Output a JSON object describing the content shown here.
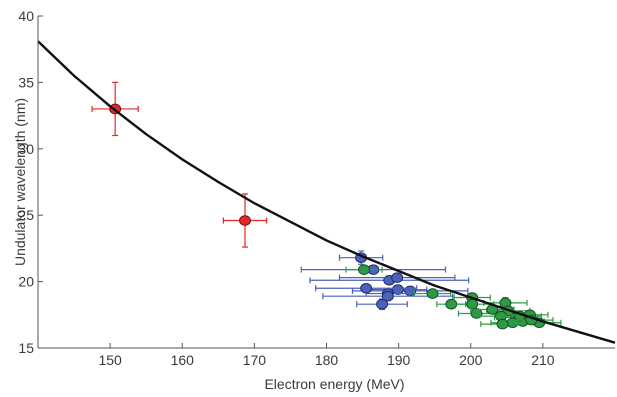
{
  "chart_data": {
    "type": "scatter",
    "title": "",
    "xlabel": "Electron energy (MeV)",
    "ylabel": "Undulator wavelength (nm)",
    "xlim": [
      140,
      220
    ],
    "ylim": [
      15,
      40
    ],
    "xticks": [
      150,
      160,
      170,
      180,
      190,
      200,
      210
    ],
    "yticks": [
      15,
      20,
      25,
      30,
      35,
      40
    ],
    "grid": false,
    "legend": "none",
    "fit_curve": {
      "description_free": true,
      "x": [
        140,
        145,
        150,
        155,
        160,
        165,
        170,
        175,
        180,
        185,
        190,
        195,
        200,
        205,
        210,
        215,
        220
      ],
      "y": [
        38.1,
        35.5,
        33.2,
        31.1,
        29.2,
        27.5,
        25.9,
        24.5,
        23.1,
        21.9,
        20.8,
        19.7,
        18.8,
        17.9,
        17.0,
        16.2,
        15.4
      ]
    },
    "series": [
      {
        "color": "#e02828",
        "edge": "#7a1010",
        "points": [
          {
            "x": 150.7,
            "y": 33.0,
            "xerr": 3.2,
            "yerr": 2.0
          },
          {
            "x": 168.7,
            "y": 24.6,
            "xerr": 3.0,
            "yerr": 2.0
          }
        ]
      },
      {
        "color": "#4a62b8",
        "edge": "#1e2c66",
        "points": [
          {
            "x": 184.8,
            "y": 21.8,
            "xerr": 3.0,
            "yerr": 0.5
          },
          {
            "x": 186.5,
            "y": 20.9,
            "xerr": 10.0,
            "yerr": 0.3
          },
          {
            "x": 188.7,
            "y": 20.1,
            "xerr": 11.0,
            "yerr": 0.3
          },
          {
            "x": 189.8,
            "y": 20.3,
            "xerr": 8.0,
            "yerr": 0.3
          },
          {
            "x": 191.6,
            "y": 19.3,
            "xerr": 8.0,
            "yerr": 0.3
          },
          {
            "x": 189.9,
            "y": 19.4,
            "xerr": 4.0,
            "yerr": 0.3
          },
          {
            "x": 188.5,
            "y": 19.1,
            "xerr": 3.0,
            "yerr": 0.3
          },
          {
            "x": 188.5,
            "y": 18.9,
            "xerr": 9.0,
            "yerr": 0.3
          },
          {
            "x": 187.7,
            "y": 18.3,
            "xerr": 3.5,
            "yerr": 0.4
          },
          {
            "x": 185.5,
            "y": 19.5,
            "xerr": 7.0,
            "yerr": 0.3
          }
        ]
      },
      {
        "color": "#2e9a46",
        "edge": "#145022",
        "points": [
          {
            "x": 185.2,
            "y": 20.9,
            "xerr": 2.5,
            "yerr": 0.3
          },
          {
            "x": 194.7,
            "y": 19.1,
            "xerr": 2.5,
            "yerr": 0.3
          },
          {
            "x": 197.3,
            "y": 18.3,
            "xerr": 2.0,
            "yerr": 0.3
          },
          {
            "x": 200.2,
            "y": 18.8,
            "xerr": 2.5,
            "yerr": 0.3
          },
          {
            "x": 200.8,
            "y": 17.6,
            "xerr": 2.5,
            "yerr": 0.3
          },
          {
            "x": 200.2,
            "y": 18.3,
            "xerr": 3.0,
            "yerr": 0.3
          },
          {
            "x": 204.8,
            "y": 18.4,
            "xerr": 3.0,
            "yerr": 0.4
          },
          {
            "x": 205.2,
            "y": 17.8,
            "xerr": 3.0,
            "yerr": 0.3
          },
          {
            "x": 204.2,
            "y": 17.4,
            "xerr": 3.5,
            "yerr": 0.3
          },
          {
            "x": 206.3,
            "y": 17.3,
            "xerr": 3.0,
            "yerr": 0.3
          },
          {
            "x": 207.2,
            "y": 17.0,
            "xerr": 3.0,
            "yerr": 0.3
          },
          {
            "x": 206.8,
            "y": 17.4,
            "xerr": 3.0,
            "yerr": 0.3
          },
          {
            "x": 208.2,
            "y": 17.5,
            "xerr": 2.5,
            "yerr": 0.3
          },
          {
            "x": 205.8,
            "y": 16.9,
            "xerr": 3.0,
            "yerr": 0.3
          },
          {
            "x": 204.4,
            "y": 16.8,
            "xerr": 3.0,
            "yerr": 0.3
          },
          {
            "x": 209.5,
            "y": 16.9,
            "xerr": 3.0,
            "yerr": 0.3
          },
          {
            "x": 208.4,
            "y": 17.1,
            "xerr": 3.0,
            "yerr": 0.3
          },
          {
            "x": 203.0,
            "y": 17.9,
            "xerr": 3.0,
            "yerr": 0.3
          }
        ]
      }
    ]
  }
}
